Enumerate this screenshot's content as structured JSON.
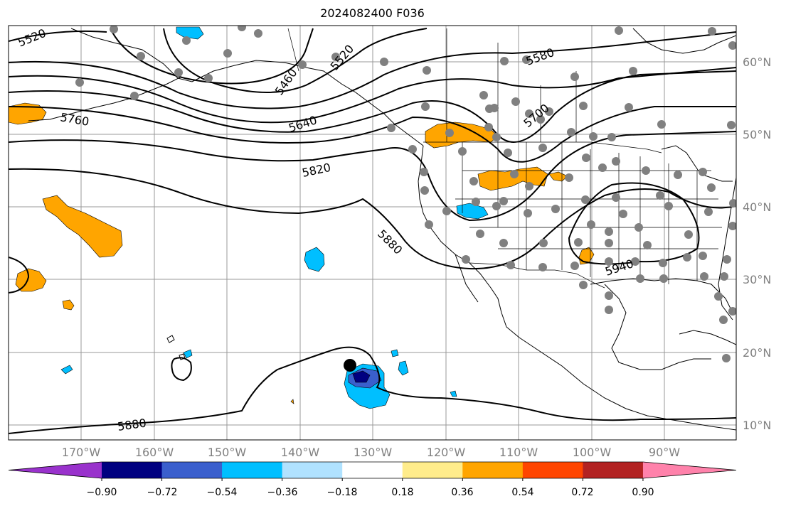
{
  "title": "2024082400 F036",
  "map": {
    "lat_labels": [
      "60°N",
      "50°N",
      "40°N",
      "30°N",
      "20°N",
      "10°N"
    ],
    "lon_labels": [
      "170°W",
      "160°W",
      "150°W",
      "140°W",
      "130°W",
      "120°W",
      "110°W",
      "100°W",
      "90°W"
    ],
    "contour_labels": [
      "5520",
      "5460",
      "5520",
      "5580",
      "5760",
      "5640",
      "5700",
      "5820",
      "5880",
      "5940",
      "5880"
    ]
  },
  "colorbar": {
    "tick_labels": [
      "−0.90",
      "−0.72",
      "−0.54",
      "−0.36",
      "−0.18",
      "0.18",
      "0.36",
      "0.54",
      "0.72",
      "0.90"
    ],
    "colors": [
      "#9932cc",
      "#000080",
      "#3a5fcd",
      "#00bfff",
      "#b0e2ff",
      "#ffffff",
      "#ffec8b",
      "#ffa500",
      "#ff4500",
      "#b22222",
      "#ff82ab"
    ]
  }
}
